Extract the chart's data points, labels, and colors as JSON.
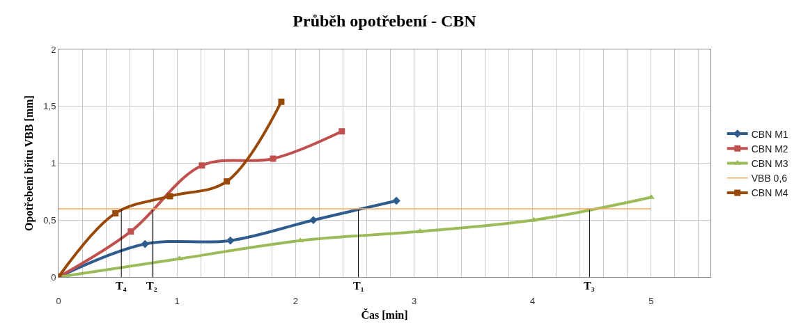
{
  "chart_data": {
    "type": "line",
    "title": "Průběh opotřebení - CBN",
    "xlabel": "Čas [min]",
    "ylabel": "Opotřebení břitu VBB [mm]",
    "xlim": [
      0,
      5.5
    ],
    "xticks": [
      0,
      {
        "value": 0.2,
        "label": null
      },
      {
        "value": 0.4,
        "label": null
      },
      {
        "value": 0.6,
        "label": null
      },
      {
        "value": 0.8,
        "label": null
      },
      1,
      {
        "value": 1.2,
        "label": null
      },
      {
        "value": 1.4,
        "label": null
      },
      {
        "value": 1.6,
        "label": null
      },
      {
        "value": 1.8,
        "label": null
      },
      2,
      {
        "value": 2.2,
        "label": null
      },
      {
        "value": 2.4,
        "label": null
      },
      {
        "value": 2.6,
        "label": null
      },
      {
        "value": 2.8,
        "label": null
      },
      3,
      {
        "value": 3.2,
        "label": null
      },
      {
        "value": 3.4,
        "label": null
      },
      {
        "value": 3.6,
        "label": null
      },
      {
        "value": 3.8,
        "label": null
      },
      4,
      {
        "value": 4.2,
        "label": null
      },
      {
        "value": 4.4,
        "label": null
      },
      {
        "value": 4.6,
        "label": null
      },
      {
        "value": 4.8,
        "label": null
      },
      5,
      {
        "value": 5.2,
        "label": null
      },
      {
        "value": 5.4,
        "label": null
      }
    ],
    "ylim": [
      0,
      2
    ],
    "yticks": [
      0,
      {
        "value": 0.5,
        "label": "0,5"
      },
      1,
      {
        "value": 1.5,
        "label": "1,5"
      },
      2
    ],
    "grid": true,
    "legend": "right",
    "series": [
      {
        "name": "CBN M1",
        "color": "#2e5c8e",
        "marker": "diamond",
        "x": [
          0,
          0.73,
          1.45,
          2.15,
          2.85
        ],
        "values": [
          0,
          0.29,
          0.32,
          0.5,
          0.67
        ]
      },
      {
        "name": "CBN M2",
        "color": "#c0504d",
        "marker": "square",
        "x": [
          0,
          0.61,
          1.21,
          1.81,
          2.39
        ],
        "values": [
          0,
          0.4,
          0.98,
          1.04,
          1.28
        ]
      },
      {
        "name": "CBN M3",
        "color": "#9bbb59",
        "marker": "triangle",
        "x": [
          0,
          1.02,
          2.04,
          3.05,
          4.01,
          5.0
        ],
        "values": [
          0,
          0.16,
          0.32,
          0.4,
          0.5,
          0.7
        ]
      },
      {
        "name": "VBB 0,6",
        "color": "#f6a95c",
        "marker": "none",
        "x": [
          0,
          5
        ],
        "values": [
          0.6,
          0.6
        ]
      },
      {
        "name": "CBN M4",
        "color": "#984807",
        "marker": "square",
        "x": [
          0,
          0.48,
          0.94,
          1.42,
          1.88
        ],
        "values": [
          0,
          0.56,
          0.71,
          0.84,
          1.54
        ]
      }
    ],
    "annotations": [
      {
        "text": "T₄",
        "x": 0.53,
        "y": 0.6
      },
      {
        "text": "T₂",
        "x": 0.79,
        "y": 0.6
      },
      {
        "text": "T₁",
        "x": 2.53,
        "y": 0.6
      },
      {
        "text": "T₃",
        "x": 4.48,
        "y": 0.6
      }
    ]
  }
}
